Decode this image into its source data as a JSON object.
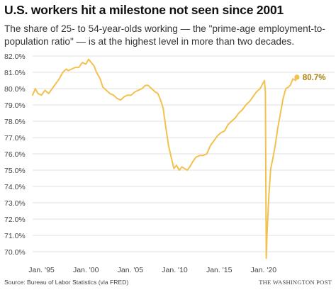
{
  "header": {
    "title": "U.S. workers hit a milestone not seen since 2001",
    "subtitle": "The share of 25- to 54-year-olds working — the \"prime-age employment-to-population ratio\" — is at the highest level in more than two decades."
  },
  "footer": {
    "source": "Source: Bureau of Labor Statistics (via FRED)",
    "credit": "THE WASHINGTON POST"
  },
  "colors": {
    "line": "#f2c14e",
    "end_point": "#f2c14e",
    "end_label": "#a8820e",
    "grid": "#d8d8d8"
  },
  "chart_data": {
    "type": "line",
    "title": "U.S. workers hit a milestone not seen since 2001",
    "xlabel": "",
    "ylabel": "",
    "ylim": [
      70.0,
      82.0
    ],
    "xlim": [
      1994.0,
      2024.0
    ],
    "grid": true,
    "y_ticks": [
      "82.0%",
      "81.0%",
      "80.0%",
      "79.0%",
      "78.0%",
      "77.0%",
      "76.0%",
      "75.0%",
      "74.0%",
      "73.0%",
      "72.0%",
      "71.0%",
      "70.0%"
    ],
    "x_ticks": [
      {
        "value": 1995,
        "label": "Jan. '95"
      },
      {
        "value": 2000,
        "label": "Jan. '00"
      },
      {
        "value": 2005,
        "label": "Jan. '05"
      },
      {
        "value": 2010,
        "label": "Jan. '10"
      },
      {
        "value": 2015,
        "label": "Jan. '15"
      },
      {
        "value": 2020,
        "label": "Jan. '20"
      }
    ],
    "end_label": "80.7%",
    "series": [
      {
        "values": [
          [
            1994.0,
            79.6
          ],
          [
            1994.3,
            80.0
          ],
          [
            1994.6,
            79.7
          ],
          [
            1995.0,
            79.6
          ],
          [
            1995.4,
            79.9
          ],
          [
            1995.8,
            79.7
          ],
          [
            1996.2,
            80.0
          ],
          [
            1996.6,
            80.3
          ],
          [
            1997.0,
            80.6
          ],
          [
            1997.4,
            81.0
          ],
          [
            1997.8,
            81.2
          ],
          [
            1998.0,
            81.1
          ],
          [
            1998.4,
            81.2
          ],
          [
            1998.8,
            81.3
          ],
          [
            1999.2,
            81.3
          ],
          [
            1999.6,
            81.6
          ],
          [
            2000.0,
            81.5
          ],
          [
            2000.3,
            81.8
          ],
          [
            2000.6,
            81.6
          ],
          [
            2000.9,
            81.4
          ],
          [
            2001.2,
            81.0
          ],
          [
            2001.6,
            80.6
          ],
          [
            2001.9,
            80.1
          ],
          [
            2002.3,
            79.9
          ],
          [
            2002.7,
            79.7
          ],
          [
            2003.1,
            79.6
          ],
          [
            2003.5,
            79.4
          ],
          [
            2003.9,
            79.3
          ],
          [
            2004.3,
            79.5
          ],
          [
            2004.7,
            79.6
          ],
          [
            2005.1,
            79.6
          ],
          [
            2005.5,
            79.8
          ],
          [
            2005.9,
            79.9
          ],
          [
            2006.3,
            80.0
          ],
          [
            2006.7,
            80.2
          ],
          [
            2007.0,
            80.2
          ],
          [
            2007.4,
            80.0
          ],
          [
            2007.8,
            79.8
          ],
          [
            2008.1,
            79.7
          ],
          [
            2008.4,
            79.3
          ],
          [
            2008.7,
            78.8
          ],
          [
            2009.0,
            77.6
          ],
          [
            2009.3,
            76.5
          ],
          [
            2009.6,
            75.8
          ],
          [
            2009.9,
            75.1
          ],
          [
            2010.2,
            75.3
          ],
          [
            2010.5,
            75.0
          ],
          [
            2010.8,
            75.2
          ],
          [
            2011.1,
            75.1
          ],
          [
            2011.4,
            75.0
          ],
          [
            2011.7,
            75.2
          ],
          [
            2012.0,
            75.5
          ],
          [
            2012.4,
            75.8
          ],
          [
            2012.8,
            75.9
          ],
          [
            2013.2,
            75.9
          ],
          [
            2013.6,
            76.0
          ],
          [
            2014.0,
            76.5
          ],
          [
            2014.4,
            76.8
          ],
          [
            2014.8,
            77.1
          ],
          [
            2015.2,
            77.3
          ],
          [
            2015.6,
            77.4
          ],
          [
            2016.0,
            77.8
          ],
          [
            2016.4,
            78.0
          ],
          [
            2016.8,
            78.2
          ],
          [
            2017.2,
            78.5
          ],
          [
            2017.6,
            78.7
          ],
          [
            2018.0,
            79.0
          ],
          [
            2018.4,
            79.2
          ],
          [
            2018.8,
            79.5
          ],
          [
            2019.2,
            79.8
          ],
          [
            2019.6,
            80.0
          ],
          [
            2020.0,
            80.4
          ],
          [
            2020.1,
            80.5
          ],
          [
            2020.2,
            79.8
          ],
          [
            2020.3,
            69.6
          ],
          [
            2020.4,
            71.3
          ],
          [
            2020.6,
            73.5
          ],
          [
            2020.8,
            75.1
          ],
          [
            2021.0,
            75.6
          ],
          [
            2021.3,
            76.5
          ],
          [
            2021.6,
            77.6
          ],
          [
            2021.9,
            78.5
          ],
          [
            2022.2,
            79.4
          ],
          [
            2022.5,
            80.0
          ],
          [
            2022.8,
            80.1
          ],
          [
            2023.0,
            80.2
          ],
          [
            2023.3,
            80.6
          ],
          [
            2023.6,
            80.5
          ],
          [
            2023.75,
            80.7
          ]
        ]
      }
    ]
  }
}
